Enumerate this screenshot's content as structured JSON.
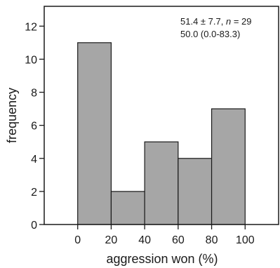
{
  "chart_data": {
    "type": "bar",
    "subtype": "histogram",
    "bins": [
      {
        "x0": 0,
        "x1": 20,
        "value": 11
      },
      {
        "x0": 20,
        "x1": 40,
        "value": 2
      },
      {
        "x0": 40,
        "x1": 60,
        "value": 5
      },
      {
        "x0": 60,
        "x1": 80,
        "value": 4
      },
      {
        "x0": 80,
        "x1": 100,
        "value": 7
      }
    ],
    "xlabel": "aggression won (%)",
    "ylabel": "frequency",
    "xlim": [
      -20,
      120
    ],
    "ylim": [
      0,
      13.2
    ],
    "xticks": [
      0,
      20,
      40,
      60,
      80,
      100
    ],
    "yticks": [
      0,
      2,
      4,
      6,
      8,
      10,
      12
    ],
    "grid": false,
    "annotations": {
      "line1_prefix": "51.4 ± 7.7, ",
      "line1_n": "n",
      "line1_suffix": " = 29",
      "line2": "50.0 (0.0-83.3)"
    },
    "colors": {
      "bar_fill": "#a6a6a6",
      "bar_stroke": "#1a1a1a",
      "axis": "#1a1a1a"
    }
  }
}
